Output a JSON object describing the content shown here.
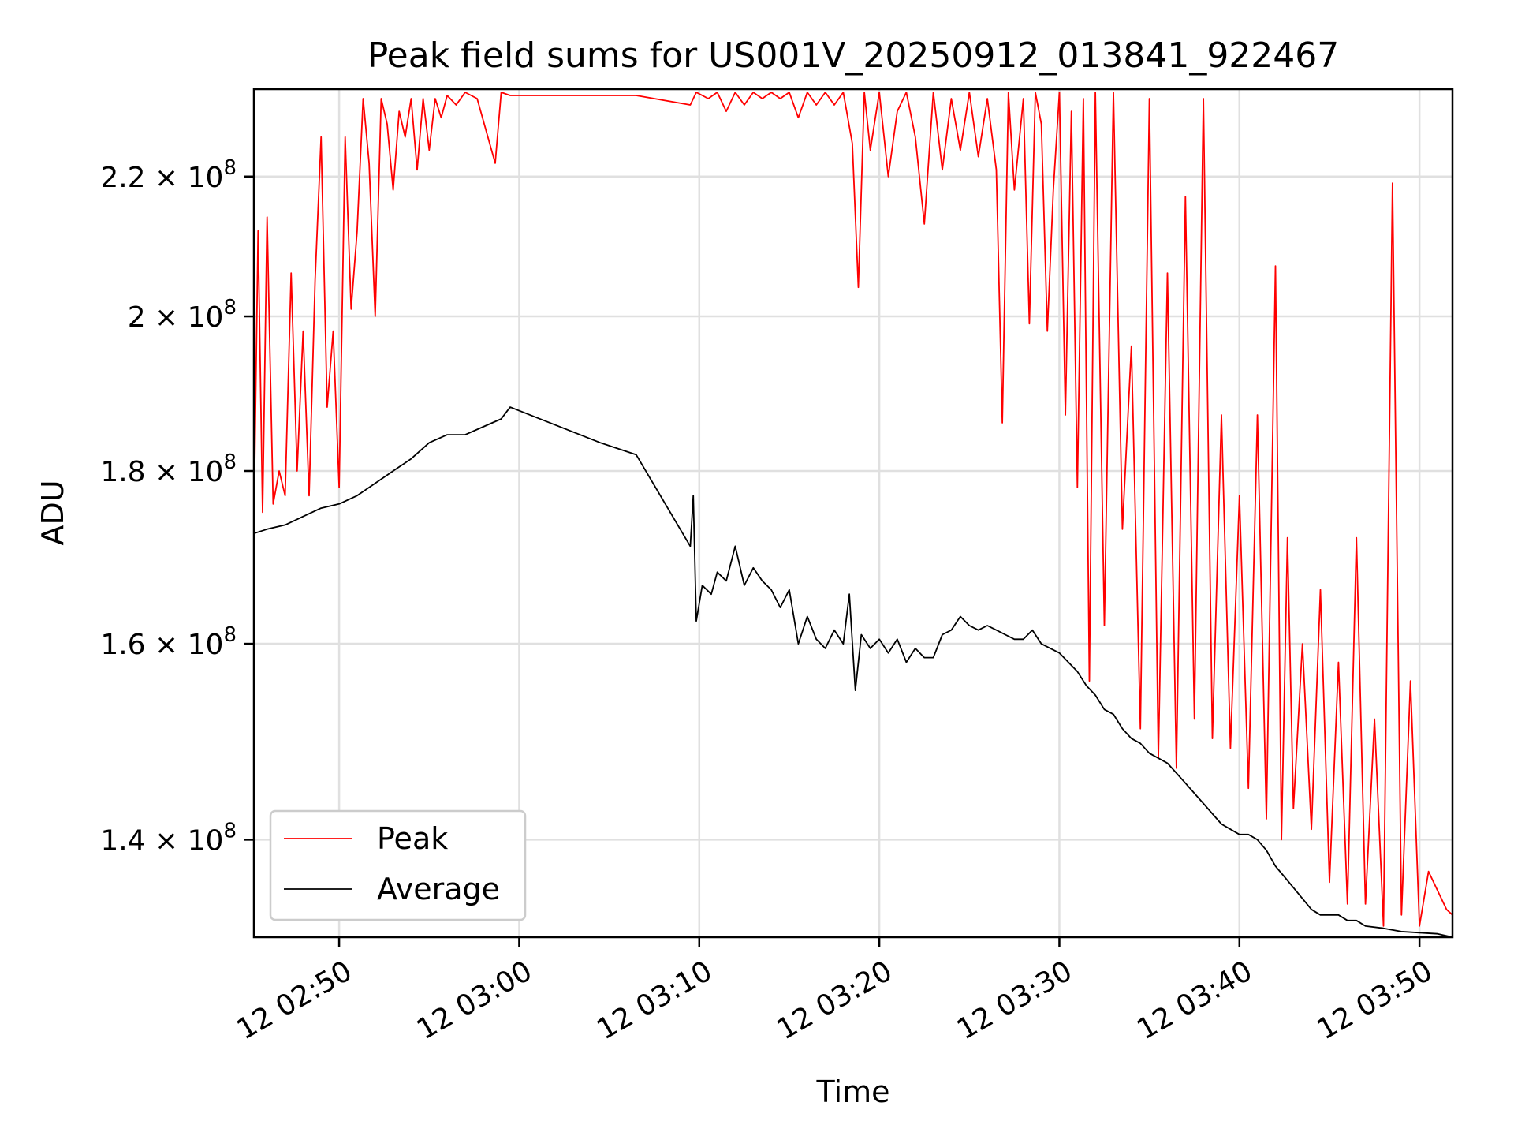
{
  "chart_data": {
    "type": "line",
    "title": "Peak field sums for US001V_20250912_013841_922467",
    "xlabel": "Time",
    "ylabel": "ADU",
    "y_scale": "log",
    "ylim": [
      131000000,
      233500000
    ],
    "xlim": [
      "12 02:45:16",
      "12 03:51:50"
    ],
    "x_ticks": [
      {
        "x": "12 02:50:00",
        "label": "12 02:50"
      },
      {
        "x": "12 03:00:00",
        "label": "12 03:00"
      },
      {
        "x": "12 03:10:00",
        "label": "12 03:10"
      },
      {
        "x": "12 03:20:00",
        "label": "12 03:20"
      },
      {
        "x": "12 03:30:00",
        "label": "12 03:30"
      },
      {
        "x": "12 03:40:00",
        "label": "12 03:40"
      },
      {
        "x": "12 03:50:00",
        "label": "12 03:50"
      }
    ],
    "y_ticks": [
      {
        "value": 140000000,
        "mantissa": "1.4",
        "exp": "8"
      },
      {
        "value": 160000000,
        "mantissa": "1.6",
        "exp": "8"
      },
      {
        "value": 180000000,
        "mantissa": "1.8",
        "exp": "8"
      },
      {
        "value": 200000000,
        "mantissa": "2",
        "exp": "8"
      },
      {
        "value": 220000000,
        "mantissa": "2.2",
        "exp": "8"
      }
    ],
    "grid": true,
    "legend_position": "lower-left",
    "series": [
      {
        "name": "Peak",
        "color": "#ff0000",
        "points": [
          [
            "12 02:45:16",
            174000000
          ],
          [
            "12 02:45:30",
            212000000
          ],
          [
            "12 02:45:45",
            175000000
          ],
          [
            "12 02:46:00",
            214000000
          ],
          [
            "12 02:46:20",
            176000000
          ],
          [
            "12 02:46:40",
            180000000
          ],
          [
            "12 02:47:00",
            177000000
          ],
          [
            "12 02:47:20",
            206000000
          ],
          [
            "12 02:47:40",
            180000000
          ],
          [
            "12 02:48:00",
            198000000
          ],
          [
            "12 02:48:20",
            177000000
          ],
          [
            "12 02:48:40",
            205000000
          ],
          [
            "12 02:49:00",
            226000000
          ],
          [
            "12 02:49:20",
            188000000
          ],
          [
            "12 02:49:40",
            198000000
          ],
          [
            "12 02:50:00",
            178000000
          ],
          [
            "12 02:50:20",
            226000000
          ],
          [
            "12 02:50:40",
            201000000
          ],
          [
            "12 02:51:00",
            212000000
          ],
          [
            "12 02:51:20",
            232000000
          ],
          [
            "12 02:51:40",
            222000000
          ],
          [
            "12 02:52:00",
            200000000
          ],
          [
            "12 02:52:20",
            232000000
          ],
          [
            "12 02:52:40",
            228000000
          ],
          [
            "12 02:53:00",
            218000000
          ],
          [
            "12 02:53:20",
            230000000
          ],
          [
            "12 02:53:40",
            226000000
          ],
          [
            "12 02:54:00",
            232000000
          ],
          [
            "12 02:54:20",
            221000000
          ],
          [
            "12 02:54:40",
            232000000
          ],
          [
            "12 02:55:00",
            224000000
          ],
          [
            "12 02:55:20",
            232000000
          ],
          [
            "12 02:55:40",
            229000000
          ],
          [
            "12 02:56:00",
            232500000
          ],
          [
            "12 02:56:30",
            231000000
          ],
          [
            "12 02:57:00",
            233000000
          ],
          [
            "12 02:57:40",
            232000000
          ],
          [
            "12 02:58:40",
            222000000
          ],
          [
            "12 02:59:00",
            233000000
          ],
          [
            "12 02:59:30",
            232500000
          ],
          [
            "12 03:04:30",
            232500000
          ],
          [
            "12 03:06:30",
            232500000
          ],
          [
            "12 03:09:30",
            231000000
          ],
          [
            "12 03:09:50",
            233000000
          ],
          [
            "12 03:10:30",
            232000000
          ],
          [
            "12 03:11:00",
            233000000
          ],
          [
            "12 03:11:30",
            230000000
          ],
          [
            "12 03:12:00",
            233000000
          ],
          [
            "12 03:12:30",
            231000000
          ],
          [
            "12 03:13:00",
            233000000
          ],
          [
            "12 03:13:30",
            232000000
          ],
          [
            "12 03:14:00",
            233000000
          ],
          [
            "12 03:14:30",
            232000000
          ],
          [
            "12 03:15:00",
            233000000
          ],
          [
            "12 03:15:30",
            229000000
          ],
          [
            "12 03:16:00",
            233000000
          ],
          [
            "12 03:16:30",
            231000000
          ],
          [
            "12 03:17:00",
            233000000
          ],
          [
            "12 03:17:30",
            231000000
          ],
          [
            "12 03:18:00",
            233000000
          ],
          [
            "12 03:18:30",
            225000000
          ],
          [
            "12 03:18:50",
            204000000
          ],
          [
            "12 03:19:10",
            233000000
          ],
          [
            "12 03:19:30",
            224000000
          ],
          [
            "12 03:20:00",
            233000000
          ],
          [
            "12 03:20:30",
            220000000
          ],
          [
            "12 03:21:00",
            230000000
          ],
          [
            "12 03:21:30",
            233000000
          ],
          [
            "12 03:22:00",
            226000000
          ],
          [
            "12 03:22:30",
            213000000
          ],
          [
            "12 03:23:00",
            233000000
          ],
          [
            "12 03:23:30",
            221000000
          ],
          [
            "12 03:24:00",
            232000000
          ],
          [
            "12 03:24:30",
            224000000
          ],
          [
            "12 03:25:00",
            233000000
          ],
          [
            "12 03:25:30",
            223000000
          ],
          [
            "12 03:26:00",
            232000000
          ],
          [
            "12 03:26:30",
            221000000
          ],
          [
            "12 03:26:50",
            186000000
          ],
          [
            "12 03:27:10",
            233000000
          ],
          [
            "12 03:27:30",
            218000000
          ],
          [
            "12 03:28:00",
            232000000
          ],
          [
            "12 03:28:20",
            199000000
          ],
          [
            "12 03:28:40",
            233000000
          ],
          [
            "12 03:29:00",
            228000000
          ],
          [
            "12 03:29:20",
            198000000
          ],
          [
            "12 03:29:40",
            218000000
          ],
          [
            "12 03:30:00",
            233000000
          ],
          [
            "12 03:30:20",
            187000000
          ],
          [
            "12 03:30:40",
            230000000
          ],
          [
            "12 03:31:00",
            178000000
          ],
          [
            "12 03:31:20",
            232000000
          ],
          [
            "12 03:31:40",
            156000000
          ],
          [
            "12 03:32:00",
            233000000
          ],
          [
            "12 03:32:30",
            162000000
          ],
          [
            "12 03:33:00",
            233000000
          ],
          [
            "12 03:33:30",
            173000000
          ],
          [
            "12 03:34:00",
            196000000
          ],
          [
            "12 03:34:30",
            151000000
          ],
          [
            "12 03:35:00",
            232000000
          ],
          [
            "12 03:35:30",
            148000000
          ],
          [
            "12 03:36:00",
            206000000
          ],
          [
            "12 03:36:30",
            147000000
          ],
          [
            "12 03:37:00",
            217000000
          ],
          [
            "12 03:37:30",
            152000000
          ],
          [
            "12 03:38:00",
            232000000
          ],
          [
            "12 03:38:30",
            150000000
          ],
          [
            "12 03:39:00",
            187000000
          ],
          [
            "12 03:39:30",
            149000000
          ],
          [
            "12 03:40:00",
            177000000
          ],
          [
            "12 03:40:30",
            145000000
          ],
          [
            "12 03:41:00",
            187000000
          ],
          [
            "12 03:41:30",
            142000000
          ],
          [
            "12 03:42:00",
            207000000
          ],
          [
            "12 03:42:20",
            140000000
          ],
          [
            "12 03:42:40",
            172000000
          ],
          [
            "12 03:43:00",
            143000000
          ],
          [
            "12 03:43:30",
            160000000
          ],
          [
            "12 03:44:00",
            141000000
          ],
          [
            "12 03:44:30",
            166000000
          ],
          [
            "12 03:45:00",
            136000000
          ],
          [
            "12 03:45:30",
            158000000
          ],
          [
            "12 03:46:00",
            134000000
          ],
          [
            "12 03:46:30",
            172000000
          ],
          [
            "12 03:47:00",
            134000000
          ],
          [
            "12 03:47:30",
            152000000
          ],
          [
            "12 03:48:00",
            132000000
          ],
          [
            "12 03:48:30",
            219000000
          ],
          [
            "12 03:49:00",
            133000000
          ],
          [
            "12 03:49:30",
            156000000
          ],
          [
            "12 03:50:00",
            132000000
          ],
          [
            "12 03:50:30",
            137000000
          ],
          [
            "12 03:51:30",
            133500000
          ],
          [
            "12 03:51:50",
            133000000
          ]
        ]
      },
      {
        "name": "Average",
        "color": "#000000",
        "points": [
          [
            "12 02:45:16",
            172500000
          ],
          [
            "12 02:46:00",
            173000000
          ],
          [
            "12 02:47:00",
            173500000
          ],
          [
            "12 02:48:00",
            174500000
          ],
          [
            "12 02:49:00",
            175500000
          ],
          [
            "12 02:50:00",
            176000000
          ],
          [
            "12 02:51:00",
            177000000
          ],
          [
            "12 02:52:00",
            178500000
          ],
          [
            "12 02:53:00",
            180000000
          ],
          [
            "12 02:54:00",
            181500000
          ],
          [
            "12 02:55:00",
            183500000
          ],
          [
            "12 02:56:00",
            184500000
          ],
          [
            "12 02:57:00",
            184500000
          ],
          [
            "12 02:58:00",
            185500000
          ],
          [
            "12 02:59:00",
            186500000
          ],
          [
            "12 02:59:30",
            188000000
          ],
          [
            "12 03:04:30",
            183500000
          ],
          [
            "12 03:06:30",
            182000000
          ],
          [
            "12 03:09:30",
            171000000
          ],
          [
            "12 03:09:40",
            177000000
          ],
          [
            "12 03:09:50",
            162500000
          ],
          [
            "12 03:10:10",
            166500000
          ],
          [
            "12 03:10:40",
            165500000
          ],
          [
            "12 03:11:00",
            168000000
          ],
          [
            "12 03:11:30",
            167000000
          ],
          [
            "12 03:12:00",
            171000000
          ],
          [
            "12 03:12:30",
            166500000
          ],
          [
            "12 03:13:00",
            168500000
          ],
          [
            "12 03:13:30",
            167000000
          ],
          [
            "12 03:14:00",
            166000000
          ],
          [
            "12 03:14:30",
            164000000
          ],
          [
            "12 03:15:00",
            166000000
          ],
          [
            "12 03:15:30",
            160000000
          ],
          [
            "12 03:16:00",
            163000000
          ],
          [
            "12 03:16:30",
            160500000
          ],
          [
            "12 03:17:00",
            159500000
          ],
          [
            "12 03:17:30",
            161500000
          ],
          [
            "12 03:18:00",
            160000000
          ],
          [
            "12 03:18:20",
            165500000
          ],
          [
            "12 03:18:40",
            155000000
          ],
          [
            "12 03:19:00",
            161000000
          ],
          [
            "12 03:19:30",
            159500000
          ],
          [
            "12 03:20:00",
            160500000
          ],
          [
            "12 03:20:30",
            159000000
          ],
          [
            "12 03:21:00",
            160500000
          ],
          [
            "12 03:21:30",
            158000000
          ],
          [
            "12 03:22:00",
            159500000
          ],
          [
            "12 03:22:30",
            158500000
          ],
          [
            "12 03:23:00",
            158500000
          ],
          [
            "12 03:23:30",
            161000000
          ],
          [
            "12 03:24:00",
            161500000
          ],
          [
            "12 03:24:30",
            163000000
          ],
          [
            "12 03:25:00",
            162000000
          ],
          [
            "12 03:25:30",
            161500000
          ],
          [
            "12 03:26:00",
            162000000
          ],
          [
            "12 03:26:30",
            161500000
          ],
          [
            "12 03:27:00",
            161000000
          ],
          [
            "12 03:27:30",
            160500000
          ],
          [
            "12 03:28:00",
            160500000
          ],
          [
            "12 03:28:30",
            161500000
          ],
          [
            "12 03:29:00",
            160000000
          ],
          [
            "12 03:29:30",
            159500000
          ],
          [
            "12 03:30:00",
            159000000
          ],
          [
            "12 03:30:30",
            158000000
          ],
          [
            "12 03:31:00",
            157000000
          ],
          [
            "12 03:31:30",
            155500000
          ],
          [
            "12 03:32:00",
            154500000
          ],
          [
            "12 03:32:30",
            153000000
          ],
          [
            "12 03:33:00",
            152500000
          ],
          [
            "12 03:33:30",
            151000000
          ],
          [
            "12 03:34:00",
            150000000
          ],
          [
            "12 03:34:30",
            149500000
          ],
          [
            "12 03:35:00",
            148500000
          ],
          [
            "12 03:35:30",
            148000000
          ],
          [
            "12 03:36:00",
            147500000
          ],
          [
            "12 03:36:30",
            146500000
          ],
          [
            "12 03:37:00",
            145500000
          ],
          [
            "12 03:37:30",
            144500000
          ],
          [
            "12 03:38:00",
            143500000
          ],
          [
            "12 03:38:30",
            142500000
          ],
          [
            "12 03:39:00",
            141500000
          ],
          [
            "12 03:39:30",
            141000000
          ],
          [
            "12 03:40:00",
            140500000
          ],
          [
            "12 03:40:30",
            140500000
          ],
          [
            "12 03:41:00",
            140000000
          ],
          [
            "12 03:41:30",
            139000000
          ],
          [
            "12 03:42:00",
            137500000
          ],
          [
            "12 03:42:30",
            136500000
          ],
          [
            "12 03:43:00",
            135500000
          ],
          [
            "12 03:43:30",
            134500000
          ],
          [
            "12 03:44:00",
            133500000
          ],
          [
            "12 03:44:30",
            133000000
          ],
          [
            "12 03:45:00",
            133000000
          ],
          [
            "12 03:45:30",
            133000000
          ],
          [
            "12 03:46:00",
            132500000
          ],
          [
            "12 03:46:30",
            132500000
          ],
          [
            "12 03:47:00",
            132000000
          ],
          [
            "12 03:48:00",
            131800000
          ],
          [
            "12 03:49:00",
            131500000
          ],
          [
            "12 03:50:00",
            131400000
          ],
          [
            "12 03:51:00",
            131300000
          ],
          [
            "12 03:51:50",
            131000000
          ]
        ]
      }
    ]
  }
}
